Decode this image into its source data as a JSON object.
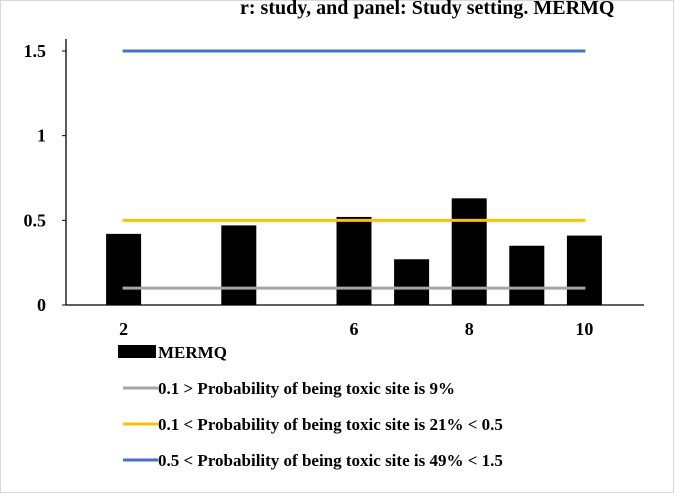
{
  "header_fragment": "r: study, and panel: Study setting. MERMQ",
  "chart_data": {
    "type": "bar",
    "x": [
      2,
      4,
      6,
      7,
      8,
      9,
      10
    ],
    "x_tick_labels": [
      "2",
      "6",
      "8",
      "10"
    ],
    "ylim": [
      0,
      1.5
    ],
    "y_ticks": [
      0,
      0.5,
      1,
      1.5
    ],
    "y_tick_labels": [
      "0",
      "0.5",
      "1",
      "1.5"
    ],
    "series": [
      {
        "name": "MERMQ",
        "kind": "bar",
        "color": "#000000",
        "values": [
          0.42,
          0.47,
          0.52,
          0.27,
          0.63,
          0.35,
          0.41
        ]
      }
    ],
    "reference_lines": [
      {
        "name": "0.1 > Probability of being toxic site is 9%",
        "y": 0.1,
        "color": "#a5a5a5"
      },
      {
        "name": "0.1 < Probability of being toxic site is 21% < 0.5",
        "y": 0.5,
        "color": "#ffc000"
      },
      {
        "name": "0.5 < Probability of being toxic site is 49% < 1.5",
        "y": 1.5,
        "color": "#4472c4"
      }
    ],
    "grid": false,
    "legend_position": "bottom"
  }
}
